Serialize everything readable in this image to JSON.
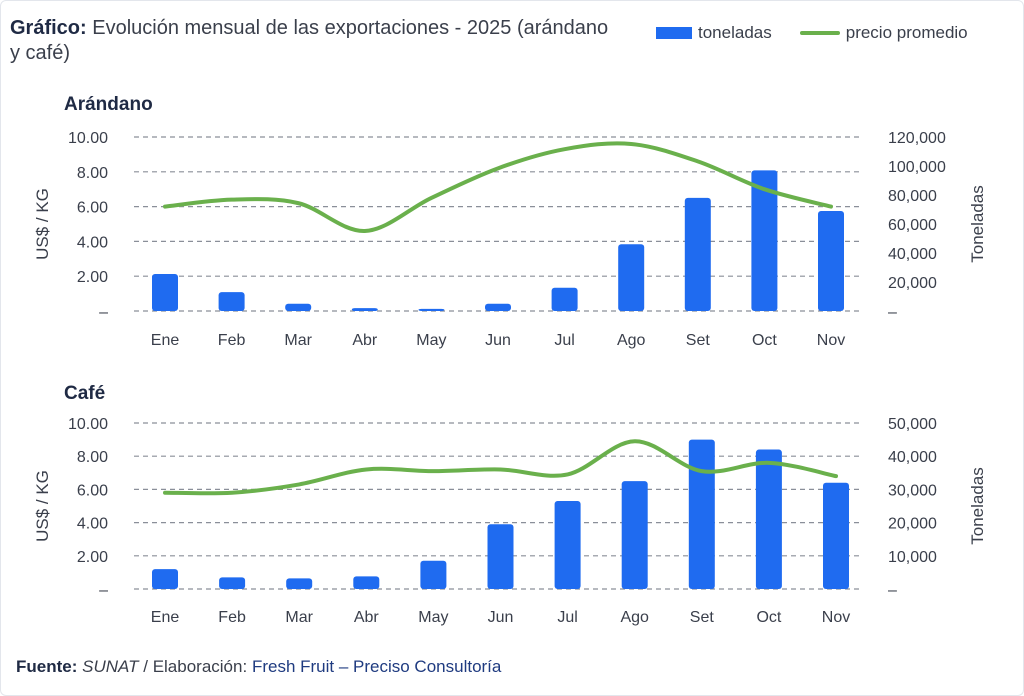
{
  "header": {
    "title_bold": "Gráfico:",
    "title_text": "Evolución mensual de las exportaciones - 2025 (arándano y café)"
  },
  "legend": {
    "bars_label": "toneladas",
    "line_label": "precio promedio"
  },
  "colors": {
    "bar": "#1f6bf0",
    "line": "#6ab04c",
    "grid": "#8a8f99"
  },
  "chart_data": [
    {
      "id": "arandano",
      "type": "bar",
      "title": "Arándano",
      "categories": [
        "Ene",
        "Feb",
        "Mar",
        "Abr",
        "May",
        "Jun",
        "Jul",
        "Ago",
        "Set",
        "Oct",
        "Nov"
      ],
      "series": [
        {
          "name": "toneladas",
          "axis": "right",
          "values": [
            25500,
            13000,
            5000,
            2000,
            1500,
            5000,
            16000,
            46000,
            78000,
            97000,
            69000
          ]
        },
        {
          "name": "precio promedio",
          "type": "line",
          "axis": "left",
          "values": [
            6.0,
            6.4,
            6.2,
            4.6,
            6.5,
            8.2,
            9.3,
            9.6,
            8.6,
            7.0,
            6.0
          ]
        }
      ],
      "ylabel": "US$ / KG",
      "ylim": [
        0,
        10
      ],
      "yticks": [
        "–",
        "2.00",
        "4.00",
        "6.00",
        "8.00",
        "10.00"
      ],
      "y2label": "Toneladas",
      "y2lim": [
        0,
        120000
      ],
      "y2ticks": [
        "–",
        "20,000",
        "40,000",
        "60,000",
        "80,000",
        "100,000",
        "120,000"
      ],
      "grid": true
    },
    {
      "id": "cafe",
      "type": "bar",
      "title": "Café",
      "categories": [
        "Ene",
        "Feb",
        "Mar",
        "Abr",
        "May",
        "Jun",
        "Jul",
        "Ago",
        "Set",
        "Oct",
        "Nov"
      ],
      "series": [
        {
          "name": "toneladas",
          "axis": "right",
          "values": [
            6000,
            3500,
            3200,
            3800,
            8500,
            19500,
            26500,
            32500,
            45000,
            42000,
            32000
          ]
        },
        {
          "name": "precio promedio",
          "type": "line",
          "axis": "left",
          "values": [
            5.8,
            5.8,
            6.3,
            7.2,
            7.1,
            7.2,
            6.9,
            8.9,
            7.1,
            7.6,
            6.8
          ]
        }
      ],
      "ylabel": "US$ / KG",
      "ylim": [
        0,
        10
      ],
      "yticks": [
        "–",
        "2.00",
        "4.00",
        "6.00",
        "8.00",
        "10.00"
      ],
      "y2label": "Toneladas",
      "y2lim": [
        0,
        50000
      ],
      "y2ticks": [
        "–",
        "10,000",
        "20,000",
        "30,000",
        "40,000",
        "50,000"
      ],
      "grid": true
    }
  ],
  "footer": {
    "source_label": "Fuente:",
    "source_value": "SUNAT",
    "separator": "/",
    "elab_label": "Elaboración:",
    "elab_value": "Fresh Fruit – Preciso Consultoría"
  }
}
